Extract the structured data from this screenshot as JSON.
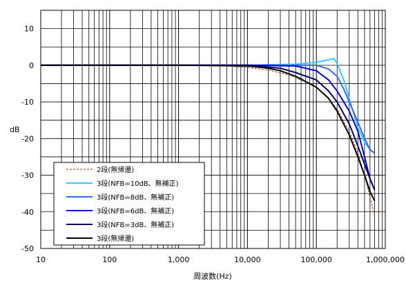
{
  "chart_data": {
    "type": "line",
    "xlabel": "周波数(Hz)",
    "ylabel": "dB",
    "x_scale": "log",
    "xlim": [
      10,
      1000000
    ],
    "ylim": [
      -50,
      15
    ],
    "x_ticks": [
      10,
      100,
      1000,
      10000,
      100000,
      1000000
    ],
    "x_tick_labels": [
      "10",
      "100",
      "1,000",
      "10,000",
      "100,000",
      "1,000,000"
    ],
    "y_ticks": [
      10,
      0,
      -10,
      -20,
      -30,
      -40,
      -50
    ],
    "y_tick_labels": [
      "10",
      "0",
      "-10",
      "-20",
      "-30",
      "-40",
      "-50"
    ],
    "grid": true,
    "legend_position": "bottom-left",
    "series": [
      {
        "name": "2段(無帰還)",
        "color": "#993300",
        "dashed": true,
        "x": [
          10,
          1000,
          5000,
          10000,
          20000,
          40000,
          60000,
          100000,
          150000,
          200000,
          300000,
          400000,
          500000,
          600000,
          700000
        ],
        "y": [
          0,
          0,
          -0.2,
          -0.6,
          -1.3,
          -2.6,
          -4,
          -6,
          -9,
          -12,
          -18,
          -24,
          -30,
          -36,
          -41
        ]
      },
      {
        "name": "3段(NFB=10dB、無補正)",
        "color": "#33CCFF",
        "dashed": false,
        "x": [
          10,
          1000,
          10000,
          50000,
          100000,
          150000,
          180000,
          200000,
          250000,
          300000,
          400000,
          500000,
          600000,
          700000
        ],
        "y": [
          0,
          0,
          0,
          0.3,
          0.8,
          1.5,
          1.8,
          0.5,
          -4,
          -9,
          -17,
          -21,
          -23,
          -24
        ]
      },
      {
        "name": "3段(NFB=8dB、無補正)",
        "color": "#3366FF",
        "dashed": false,
        "x": [
          10,
          1000,
          10000,
          50000,
          100000,
          150000,
          200000,
          250000,
          300000,
          400000,
          500000,
          600000,
          700000
        ],
        "y": [
          0,
          0,
          0,
          0,
          0,
          -1,
          -3,
          -6.5,
          -10,
          -15.5,
          -20,
          -23,
          -24
        ]
      },
      {
        "name": "3段(NFB=6dB、無補正)",
        "color": "#0000CC",
        "dashed": false,
        "x": [
          10,
          1000,
          10000,
          50000,
          100000,
          150000,
          200000,
          300000,
          400000,
          500000,
          600000,
          700000
        ],
        "y": [
          0,
          0,
          0,
          -0.2,
          -1.5,
          -4,
          -7,
          -12.5,
          -18,
          -25,
          -31,
          -34
        ]
      },
      {
        "name": "3段(NFB=3dB、無補正)",
        "color": "#000066",
        "dashed": false,
        "x": [
          10,
          1000,
          10000,
          30000,
          50000,
          100000,
          150000,
          200000,
          300000,
          400000,
          500000,
          600000,
          700000
        ],
        "y": [
          0,
          0,
          0,
          -0.8,
          -2,
          -4,
          -7,
          -10,
          -16,
          -22,
          -27,
          -31,
          -34
        ]
      },
      {
        "name": "3段(無帰還)",
        "color": "#000000",
        "dashed": false,
        "x": [
          10,
          1000,
          10000,
          20000,
          30000,
          50000,
          100000,
          150000,
          200000,
          300000,
          400000,
          500000,
          600000,
          700000
        ],
        "y": [
          0,
          0,
          -0.2,
          -0.8,
          -1.5,
          -3,
          -6,
          -9,
          -12.5,
          -19,
          -25,
          -30,
          -34.5,
          -37
        ]
      }
    ]
  }
}
